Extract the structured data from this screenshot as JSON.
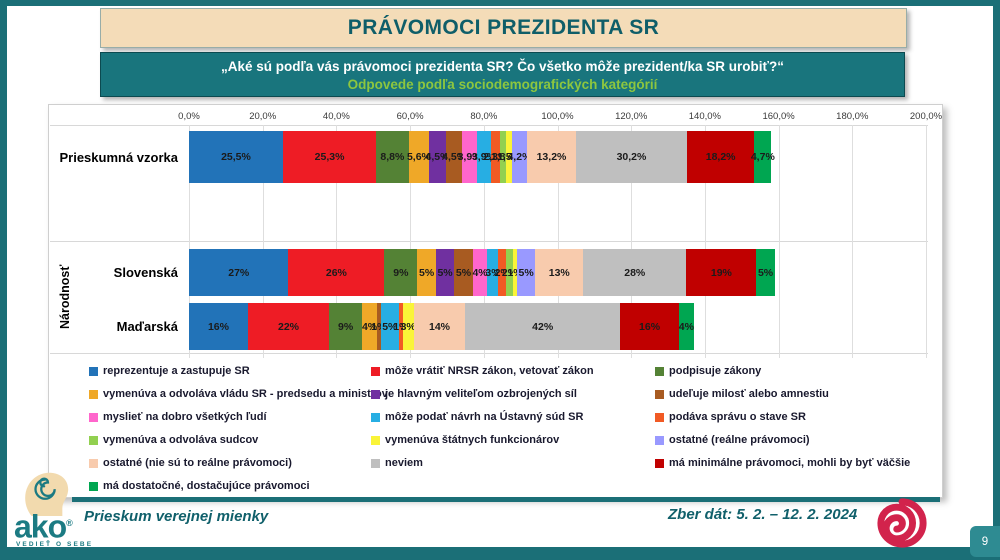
{
  "title": "PRÁVOMOCI PREZIDENTA SR",
  "subtitle": {
    "question": "„Aké sú podľa vás právomoci prezidenta SR? Čo všetko môže prezident/ka SR urobiť?“",
    "note": "Odpovede podľa sociodemografických kategórií"
  },
  "footer": {
    "left_text": "Prieskum verejnej mienky",
    "right_text": "Zber dát: 5. 2. – 12. 2. 2024",
    "logo_text": "ako",
    "logo_reg": "®",
    "logo_tagline": "VEDIEŤ O SEBE",
    "page_number": "9"
  },
  "chart_data": {
    "type": "bar",
    "variant": "horizontal-stacked",
    "legend_position": "bottom",
    "grid": true,
    "x_axis": {
      "min": 0,
      "max": 200,
      "step": 20,
      "ticks": [
        "0,0%",
        "20,0%",
        "40,0%",
        "60,0%",
        "80,0%",
        "100,0%",
        "120,0%",
        "140,0%",
        "160,0%",
        "180,0%",
        "200,0%"
      ]
    },
    "group_label": "Národnosť",
    "rows": [
      {
        "label": "Prieskumná vzorka",
        "group": null
      },
      {
        "label": "Slovenská",
        "group": "Národnosť"
      },
      {
        "label": "Maďarská",
        "group": "Národnosť"
      }
    ],
    "series": [
      {
        "name": "reprezentuje a zastupuje SR",
        "color": "#2273B8",
        "values": [
          25.5,
          27,
          16
        ],
        "labels": [
          "25,5%",
          "27%",
          "16%"
        ]
      },
      {
        "name": "môže vrátiť NRSR zákon, vetovať zákon",
        "color": "#EE1C25",
        "values": [
          25.3,
          26,
          22
        ],
        "labels": [
          "25,3%",
          "26%",
          "22%"
        ]
      },
      {
        "name": "podpisuje zákony",
        "color": "#548235",
        "values": [
          8.8,
          9,
          9
        ],
        "labels": [
          "8,8%",
          "9%",
          "9%"
        ]
      },
      {
        "name": "vymenúva a odvoláva vládu SR - predsedu a ministrov",
        "color": "#EFA828",
        "values": [
          5.6,
          5,
          4
        ],
        "labels": [
          "5,6%",
          "5%",
          "4%"
        ]
      },
      {
        "name": "je hlavným veliteľom ozbrojených síl",
        "color": "#7030A0",
        "values": [
          4.5,
          5,
          0
        ],
        "labels": [
          "4,5%",
          "5%",
          "0%"
        ]
      },
      {
        "name": "udeľuje milosť alebo amnestiu",
        "color": "#A85B21",
        "values": [
          4.5,
          5,
          1
        ],
        "labels": [
          "4,5%",
          "5%",
          "1%"
        ]
      },
      {
        "name": "myslieť na dobro všetkých ľudí",
        "color": "#FF66CC",
        "values": [
          3.9,
          4,
          0
        ],
        "labels": [
          "3,9%",
          "4%",
          "0%"
        ]
      },
      {
        "name": "môže podať návrh na Ústavný súd SR",
        "color": "#27AEE3",
        "values": [
          3.9,
          3,
          5
        ],
        "labels": [
          "3,9%",
          "3%",
          "5%"
        ]
      },
      {
        "name": "podáva správu o stave SR",
        "color": "#F15A24",
        "values": [
          2.3,
          2,
          1
        ],
        "labels": [
          "2,3%",
          "2%",
          "1%"
        ]
      },
      {
        "name": "vymenúva a odvoláva sudcov",
        "color": "#92D050",
        "values": [
          1.8,
          2,
          0
        ],
        "labels": [
          "1,8%",
          "2%",
          "0%"
        ]
      },
      {
        "name": "vymenúva štátnych funkcionárov",
        "color": "#FAF438",
        "values": [
          1.5,
          1,
          3
        ],
        "labels": [
          "1,5%",
          "1%",
          "3%"
        ]
      },
      {
        "name": "ostatné (reálne právomoci)",
        "color": "#9999FF",
        "values": [
          4.2,
          5,
          0
        ],
        "labels": [
          "4,2%",
          "5%",
          "0%"
        ]
      },
      {
        "name": "ostatné (nie sú to reálne právomoci)",
        "color": "#F8CBAD",
        "values": [
          13.2,
          13,
          14
        ],
        "labels": [
          "13,2%",
          "13%",
          "14%"
        ]
      },
      {
        "name": "neviem",
        "color": "#BFBFBF",
        "values": [
          30.2,
          28,
          42
        ],
        "labels": [
          "30,2%",
          "28%",
          "42%"
        ]
      },
      {
        "name": "má minimálne právomoci, mohli by byť väčšie",
        "color": "#C00000",
        "values": [
          18.2,
          19,
          16
        ],
        "labels": [
          "18,2%",
          "19%",
          "16%"
        ]
      },
      {
        "name": "má dostatočné, dostačujúce právomoci",
        "color": "#00A651",
        "values": [
          4.7,
          5,
          4
        ],
        "labels": [
          "4,7%",
          "5%",
          "4%"
        ]
      }
    ]
  }
}
